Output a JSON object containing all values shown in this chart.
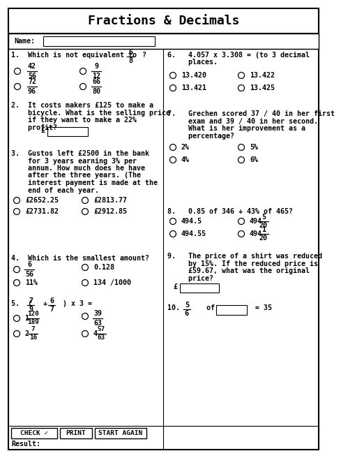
{
  "title": "Fractions & Decimals",
  "bg": "#ffffff",
  "q1_line": "1.  Which is not equivalent to",
  "q1_frac_n": "6",
  "q1_frac_d": "8",
  "q2_lines": [
    "2.  It costs makers £125 to make a",
    "    bicycle. What is the selling price",
    "    if they want to make a 22%",
    "    profit?"
  ],
  "q3_lines": [
    "3.  Gustos left £2500 in the bank",
    "    for 3 years earning 3% per",
    "    annum. How much does he have",
    "    after the three years. (The",
    "    interest payment is made at the",
    "    end of each year."
  ],
  "q3_opts": [
    [
      "£2652.25",
      "£2813.77"
    ],
    [
      "£2731.82",
      "£2912.85"
    ]
  ],
  "q4_line": "4.  Which is the smallest amount?",
  "q5_line": "5.  (",
  "q6_lines": [
    "6.   4.057 x 3.308 = (to 3 decimal",
    "     places."
  ],
  "q6_opts": [
    [
      "13.420",
      "13.422"
    ],
    [
      "13.421",
      "13.425"
    ]
  ],
  "q7_lines": [
    "7.   Grechen scored 37 / 40 in her first",
    "     exam and 39 / 40 in her second.",
    "     What is her improvement as a",
    "     percentage?"
  ],
  "q7_opts": [
    [
      "2%",
      "5%"
    ],
    [
      "4%",
      "6%"
    ]
  ],
  "q8_line": "8.   0.85 of 346 + 43% of 465?",
  "q9_lines": [
    "9.   The price of a shirt was reduced",
    "     by 15%. If the reduced price is",
    "     £59.67, what was the original",
    "     price?"
  ],
  "title_fs": 13,
  "body_fs": 7.2,
  "col_div": 224
}
